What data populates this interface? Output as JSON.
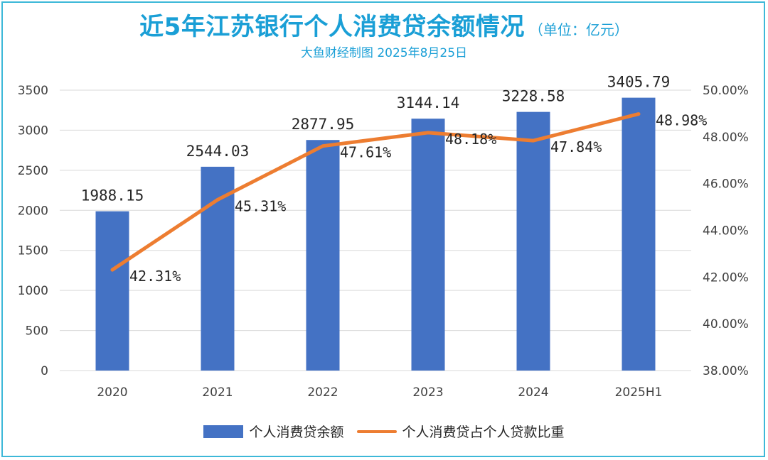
{
  "title": "近5年江苏银行个人消费贷余额情况",
  "title_unit": "（单位：亿元）",
  "subtitle": "大鱼财经制图  2025年8月25日",
  "colors": {
    "accent": "#1a9fd6",
    "bar": "#4472c4",
    "line": "#ed7d31",
    "grid": "#d9d9d9",
    "frame": "#3db8d8"
  },
  "chart_data": {
    "type": "bar",
    "categories": [
      "2020",
      "2021",
      "2022",
      "2023",
      "2024",
      "2025H1"
    ],
    "series": [
      {
        "name": "个人消费贷余额",
        "type": "bar",
        "axis": "left",
        "values": [
          1988.15,
          2544.03,
          2877.95,
          3144.14,
          3228.58,
          3405.79
        ],
        "labels": [
          "1988.15",
          "2544.03",
          "2877.95",
          "3144.14",
          "3228.58",
          "3405.79"
        ]
      },
      {
        "name": "个人消费贷占个人贷款比重",
        "type": "line",
        "axis": "right",
        "values": [
          42.31,
          45.31,
          47.61,
          48.18,
          47.84,
          48.98
        ],
        "labels": [
          "42.31%",
          "45.31%",
          "47.61%",
          "48.18%",
          "47.84%",
          "48.98%"
        ]
      }
    ],
    "y_left": {
      "range": [
        0,
        3500
      ],
      "ticks": [
        0,
        500,
        1000,
        1500,
        2000,
        2500,
        3000,
        3500
      ],
      "tick_labels": [
        "0",
        "500",
        "1000",
        "1500",
        "2000",
        "2500",
        "3000",
        "3500"
      ]
    },
    "y_right": {
      "range": [
        38,
        50
      ],
      "ticks": [
        38,
        40,
        42,
        44,
        46,
        48,
        50
      ],
      "tick_labels": [
        "38.00%",
        "40.00%",
        "42.00%",
        "44.00%",
        "46.00%",
        "48.00%",
        "50.00%"
      ]
    },
    "grid": true,
    "legend_position": "bottom"
  }
}
